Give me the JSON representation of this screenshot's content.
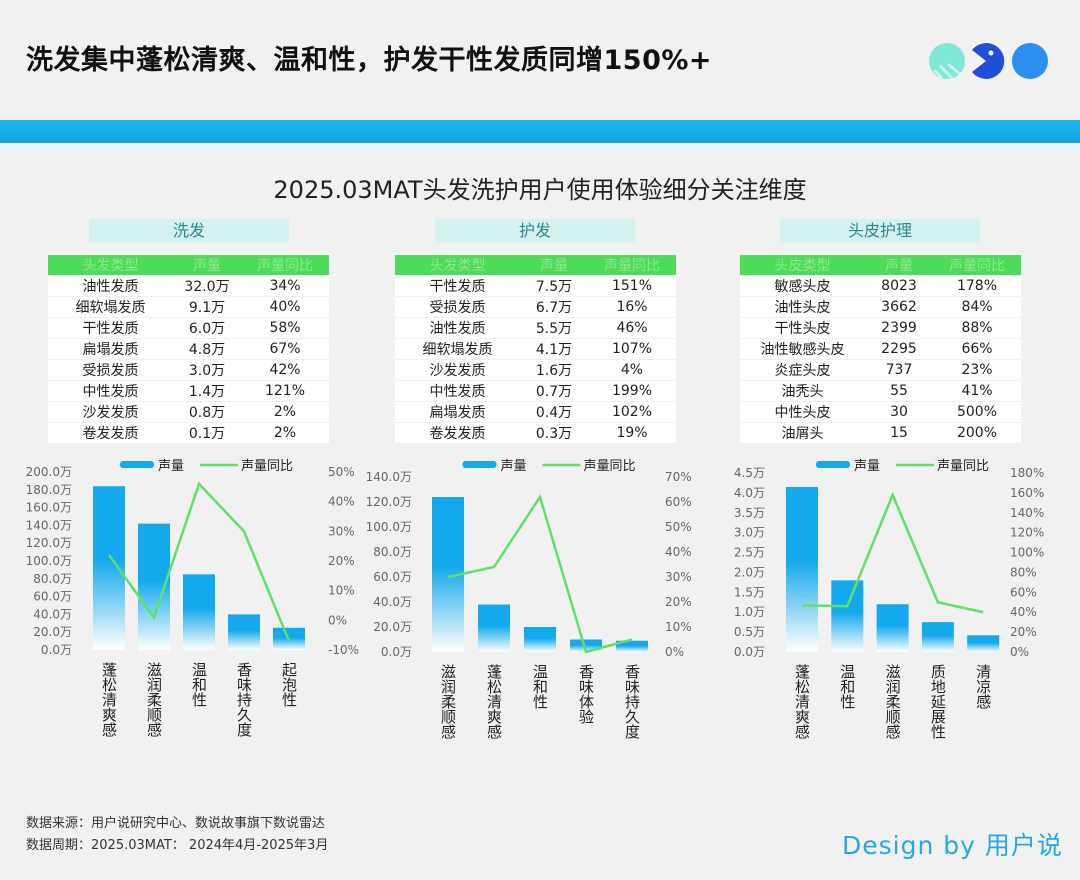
{
  "title": "洗发集中蓬松清爽、温和性，护发干性发质同增150%+",
  "subtitle": "2025.03MAT头发洗护用户使用体验细分关注维度",
  "sections": [
    {
      "label": "洗发",
      "headers": [
        "头发类型",
        "声量",
        "声量同比"
      ],
      "rows": [
        [
          "油性发质",
          "32.0万",
          "34%"
        ],
        [
          "细软塌发质",
          "9.1万",
          "40%"
        ],
        [
          "干性发质",
          "6.0万",
          "58%"
        ],
        [
          "扁塌发质",
          "4.8万",
          "67%"
        ],
        [
          "受损发质",
          "3.0万",
          "42%"
        ],
        [
          "中性发质",
          "1.4万",
          "121%"
        ],
        [
          "沙发发质",
          "0.8万",
          "2%"
        ],
        [
          "卷发发质",
          "0.1万",
          "2%"
        ]
      ]
    },
    {
      "label": "护发",
      "headers": [
        "头发类型",
        "声量",
        "声量同比"
      ],
      "rows": [
        [
          "干性发质",
          "7.5万",
          "151%"
        ],
        [
          "受损发质",
          "6.7万",
          "16%"
        ],
        [
          "油性发质",
          "5.5万",
          "46%"
        ],
        [
          "细软塌发质",
          "4.1万",
          "107%"
        ],
        [
          "沙发发质",
          "1.6万",
          "4%"
        ],
        [
          "中性发质",
          "0.7万",
          "199%"
        ],
        [
          "扁塌发质",
          "0.4万",
          "102%"
        ],
        [
          "卷发发质",
          "0.3万",
          "19%"
        ]
      ]
    },
    {
      "label": "头皮护理",
      "headers": [
        "头皮类型",
        "声量",
        "声量同比"
      ],
      "rows": [
        [
          "敏感头皮",
          "8023",
          "178%"
        ],
        [
          "油性头皮",
          "3662",
          "84%"
        ],
        [
          "干性头皮",
          "2399",
          "88%"
        ],
        [
          "油性敏感头皮",
          "2295",
          "66%"
        ],
        [
          "炎症头皮",
          "737",
          "23%"
        ],
        [
          "油秃头",
          "55",
          "41%"
        ],
        [
          "中性头皮",
          "30",
          "500%"
        ],
        [
          "油屑头",
          "15",
          "200%"
        ]
      ]
    }
  ],
  "chart_data": [
    {
      "type": "bar+line",
      "categories": [
        "蓬松清爽感",
        "滋润柔顺感",
        "温和性",
        "香味持久度",
        "起泡性"
      ],
      "series": [
        {
          "name": "声量",
          "type": "bar",
          "axis": "left",
          "values": [
            184,
            142,
            85,
            40,
            25
          ]
        },
        {
          "name": "声量同比",
          "type": "line",
          "axis": "right",
          "values": [
            22,
            1,
            46,
            30,
            -7
          ]
        }
      ],
      "left_axis": {
        "range": [
          0,
          200
        ],
        "ticks": [
          "0.0万",
          "20.0万",
          "40.0万",
          "60.0万",
          "80.0万",
          "100.0万",
          "120.0万",
          "140.0万",
          "160.0万",
          "180.0万",
          "200.0万"
        ]
      },
      "right_axis": {
        "range": [
          -10,
          50
        ],
        "ticks": [
          "-10%",
          "0%",
          "10%",
          "20%",
          "30%",
          "40%",
          "50%"
        ]
      },
      "legend": "top"
    },
    {
      "type": "bar+line",
      "categories": [
        "滋润柔顺感",
        "蓬松清爽感",
        "温和性",
        "香味体验",
        "香味持久度"
      ],
      "series": [
        {
          "name": "声量",
          "type": "bar",
          "axis": "left",
          "values": [
            124,
            38,
            20,
            10,
            9
          ]
        },
        {
          "name": "声量同比",
          "type": "line",
          "axis": "right",
          "values": [
            30,
            34,
            62,
            0,
            5
          ]
        }
      ],
      "left_axis": {
        "range": [
          0,
          140
        ],
        "ticks": [
          "0.0万",
          "20.0万",
          "40.0万",
          "60.0万",
          "80.0万",
          "100.0万",
          "120.0万",
          "140.0万"
        ]
      },
      "right_axis": {
        "range": [
          0,
          70
        ],
        "ticks": [
          "0%",
          "10%",
          "20%",
          "30%",
          "40%",
          "50%",
          "60%",
          "70%"
        ]
      },
      "legend": "top"
    },
    {
      "type": "bar+line",
      "categories": [
        "蓬松清爽感",
        "温和性",
        "滋润柔顺感",
        "质地延展性",
        "清凉感"
      ],
      "series": [
        {
          "name": "声量",
          "type": "bar",
          "axis": "left",
          "values": [
            4.15,
            1.8,
            1.2,
            0.75,
            0.42
          ]
        },
        {
          "name": "声量同比",
          "type": "line",
          "axis": "right",
          "values": [
            47,
            46,
            158,
            50,
            40
          ]
        }
      ],
      "left_axis": {
        "range": [
          0,
          4.5
        ],
        "ticks": [
          "0.0万",
          "0.5万",
          "1.0万",
          "1.5万",
          "2.0万",
          "2.5万",
          "3.0万",
          "3.5万",
          "4.0万",
          "4.5万"
        ]
      },
      "right_axis": {
        "range": [
          0,
          180
        ],
        "ticks": [
          "0%",
          "20%",
          "40%",
          "60%",
          "80%",
          "100%",
          "120%",
          "140%",
          "160%",
          "180%"
        ]
      },
      "legend": "top"
    }
  ],
  "colors": {
    "bar": "#14a9ec",
    "line": "#5ee06a",
    "band": "#1fb6ee",
    "table_header": "#4ddb5a"
  },
  "footer": {
    "source": "数据来源：用户说研究中心、数说故事旗下数说雷达",
    "period": "数据周期：2025.03MAT：  2024年4月-2025年3月",
    "design": "Design by 用户说"
  }
}
